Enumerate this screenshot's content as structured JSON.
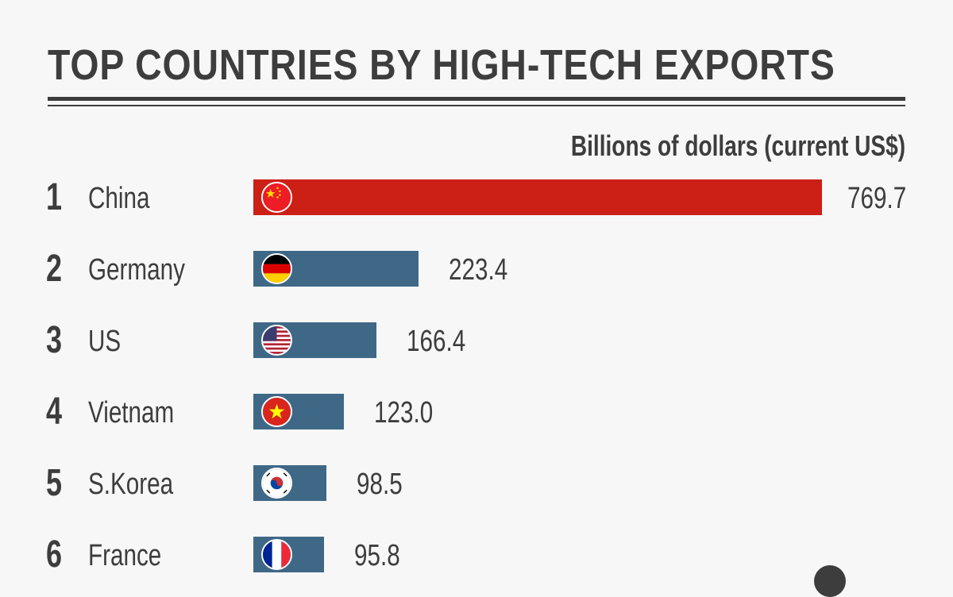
{
  "chart_data": {
    "type": "bar",
    "orientation": "horizontal",
    "title": "TOP COUNTRIES BY HIGH-TECH EXPORTS",
    "unit_label": "Billions of dollars (current US$)",
    "ranks": [
      "1",
      "2",
      "3",
      "4",
      "5",
      "6"
    ],
    "categories": [
      "China",
      "Germany",
      "US",
      "Vietnam",
      "S.Korea",
      "France"
    ],
    "values": [
      769.7,
      223.4,
      166.4,
      123.0,
      98.5,
      95.8
    ],
    "value_labels": [
      "769.7",
      "223.4",
      "166.4",
      "123.0",
      "98.5",
      "95.8"
    ],
    "flags": [
      "china-flag",
      "germany-flag",
      "us-flag",
      "vietnam-flag",
      "south-korea-flag",
      "france-flag"
    ],
    "colors": {
      "highlight": "#cc2016",
      "default": "#3f6887",
      "text": "#3d3d3d",
      "background": "#f7f7f7"
    }
  }
}
